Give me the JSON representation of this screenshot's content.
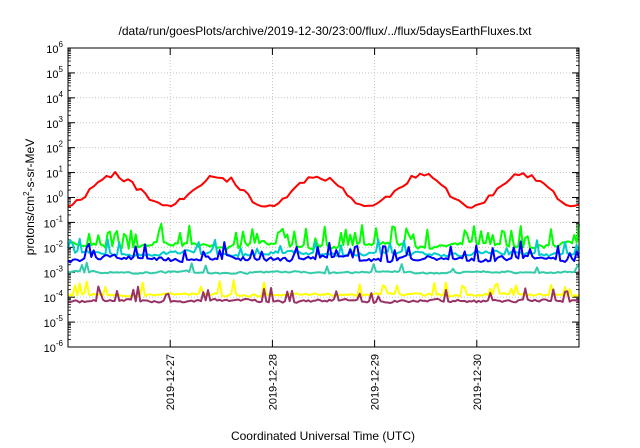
{
  "chart_data": {
    "type": "line",
    "title": "/data/run/goesPlots/archive/2019-12-30/23:00/flux/../flux/5daysEarthFluxes.txt",
    "xlabel": "Coordinated Universal Time (UTC)",
    "ylabel_parts": [
      "protons/cm",
      "2",
      "-s-sr-MeV"
    ],
    "yscale": "log",
    "ylim_exp": [
      -6,
      6
    ],
    "ytick_exponents": [
      -6,
      -5,
      -4,
      -3,
      -2,
      -1,
      0,
      1,
      2,
      3,
      4,
      5,
      6
    ],
    "ytick_base": "10",
    "xlim_days": [
      0,
      5
    ],
    "xticks": [
      {
        "label": "2019-12-27",
        "day": 1
      },
      {
        "label": "2019-12-28",
        "day": 2
      },
      {
        "label": "2019-12-29",
        "day": 3
      },
      {
        "label": "2019-12-30",
        "day": 4
      }
    ],
    "grid": true,
    "series": [
      {
        "color": "#ff0000",
        "n": 120,
        "seed": 11,
        "baseExp": 0.28,
        "amp": 0.62,
        "period": 1.0,
        "phase": 0.45,
        "noise": 0.18,
        "spikeProb": 0.04,
        "spikeAmp": 0.15
      },
      {
        "color": "#00ff00",
        "n": 220,
        "seed": 23,
        "baseExp": -1.9,
        "amp": 0.08,
        "period": 1.0,
        "phase": 0.0,
        "noise": 0.12,
        "spikeProb": 0.22,
        "spikeAmp": 0.75
      },
      {
        "color": "#00cccc",
        "n": 220,
        "seed": 31,
        "baseExp": -2.25,
        "amp": 0.05,
        "period": 1.0,
        "phase": 0.2,
        "noise": 0.1,
        "spikeProb": 0.12,
        "spikeAmp": 0.55
      },
      {
        "color": "#0000ff",
        "n": 220,
        "seed": 47,
        "baseExp": -2.45,
        "amp": 0.05,
        "period": 1.0,
        "phase": 0.5,
        "noise": 0.12,
        "spikeProb": 0.16,
        "spikeAmp": 0.6
      },
      {
        "color": "#33ccaa",
        "n": 220,
        "seed": 59,
        "baseExp": -3.0,
        "amp": 0.03,
        "period": 1.0,
        "phase": 0.1,
        "noise": 0.05,
        "spikeProb": 0.05,
        "spikeAmp": 0.4
      },
      {
        "color": "#ffff00",
        "n": 220,
        "seed": 67,
        "baseExp": -3.9,
        "amp": 0.03,
        "period": 1.0,
        "phase": 0.3,
        "noise": 0.07,
        "spikeProb": 0.1,
        "spikeAmp": 0.55
      },
      {
        "color": "#993366",
        "n": 220,
        "seed": 71,
        "baseExp": -4.15,
        "amp": 0.03,
        "period": 1.0,
        "phase": 0.6,
        "noise": 0.07,
        "spikeProb": 0.12,
        "spikeAmp": 0.6
      }
    ]
  }
}
